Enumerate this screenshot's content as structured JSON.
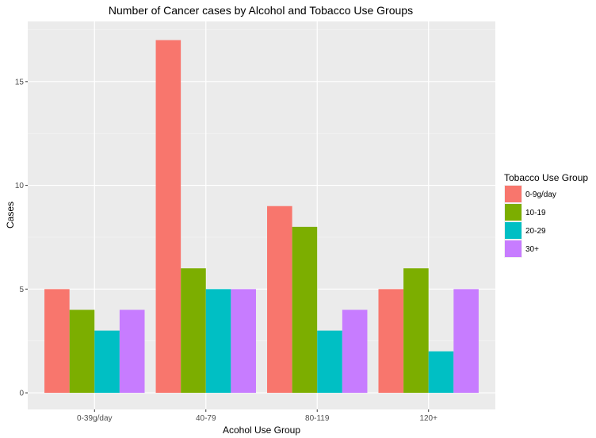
{
  "chart_data": {
    "type": "bar",
    "title": "Number of Cancer cases by Alcohol and Tobacco Use Groups",
    "xlabel": "Acohol Use Group",
    "ylabel": "Cases",
    "categories": [
      "0-39g/day",
      "40-79",
      "80-119",
      "120+"
    ],
    "yticks": [
      0,
      5,
      10,
      15
    ],
    "ylim": [
      -0.8,
      17.9
    ],
    "grid": true,
    "legend": {
      "title": "Tobacco Use Group",
      "position": "right"
    },
    "series": [
      {
        "name": "0-9g/day",
        "color": "#F8766D",
        "values": [
          5,
          17,
          9,
          5
        ]
      },
      {
        "name": "10-19",
        "color": "#7CAE00",
        "values": [
          4,
          6,
          8,
          6
        ]
      },
      {
        "name": "20-29",
        "color": "#00BFC4",
        "values": [
          3,
          5,
          3,
          2
        ]
      },
      {
        "name": "30+",
        "color": "#C77CFF",
        "values": [
          4,
          5,
          4,
          5
        ]
      }
    ]
  }
}
